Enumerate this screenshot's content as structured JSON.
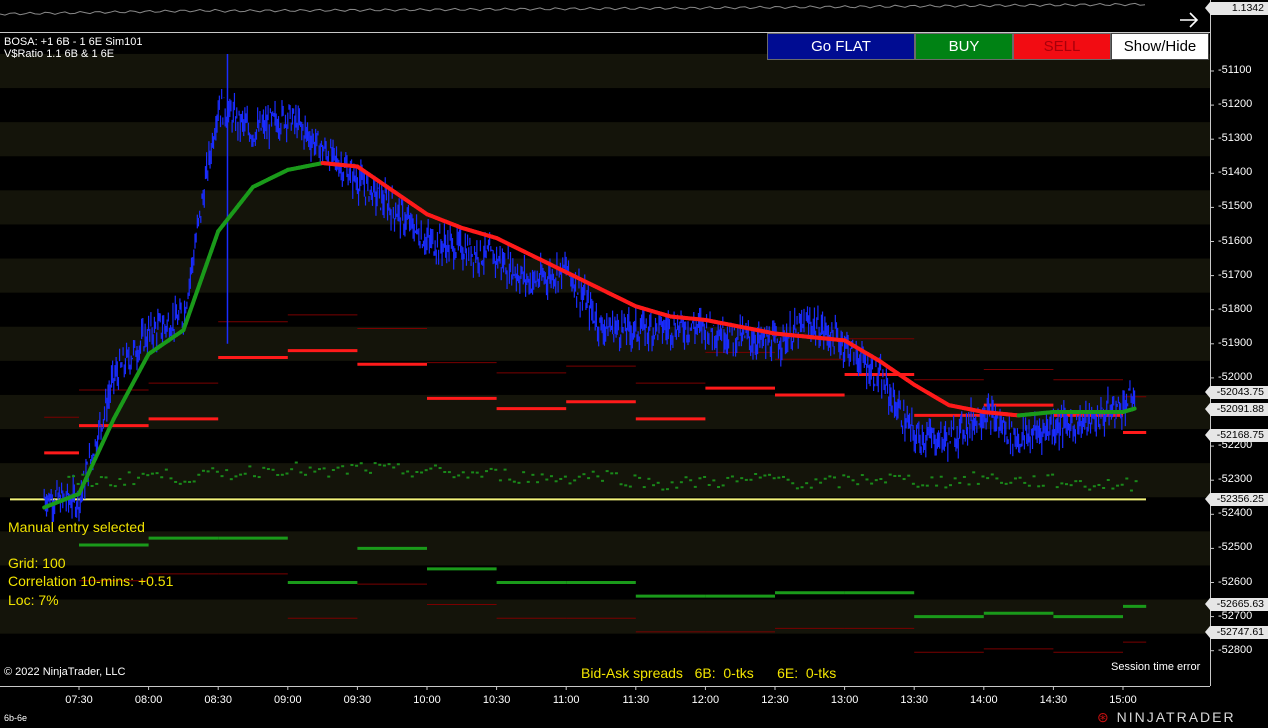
{
  "buttons": {
    "go_flat": "Go FLAT",
    "buy": "BUY",
    "sell": "SELL",
    "show_hide": "Show/Hide"
  },
  "header": {
    "line1": "BOSA: +1 6B - 1 6E  Sim101",
    "line2": "V$Ratio 1.1 6B & 1 6E"
  },
  "top_panel": {
    "price_flag": "1.1342",
    "arrow_icon": "right-arrow-icon"
  },
  "overlay": {
    "manual_entry": "Manual entry selected",
    "grid": "Grid: 100",
    "correlation": "Correlation 10-mins: +0.51",
    "loc": "Loc: 7%"
  },
  "footer": {
    "copyright": "© 2022 NinjaTrader, LLC",
    "spreads": "Bid-Ask spreads   6B:  0-tks      6E:  0-tks",
    "session": "Session time error",
    "instrument": "6b-6e",
    "logo": "NINJATRADER"
  },
  "price_axis": {
    "labels": [
      "-51100",
      "-51200",
      "-51300",
      "-51400",
      "-51500",
      "-51600",
      "-51700",
      "-51800",
      "-51900",
      "-52000",
      "-52100",
      "-52200",
      "-52300",
      "-52400",
      "-52500",
      "-52600",
      "-52700",
      "-52800"
    ],
    "flags": [
      "-52043.75",
      "-52091.88",
      "-52168.75",
      "-52356.25",
      "-52665.63",
      "-52747.61"
    ]
  },
  "time_axis": {
    "labels": [
      "07:30",
      "08:00",
      "08:30",
      "09:00",
      "09:30",
      "10:00",
      "10:30",
      "11:00",
      "11:30",
      "12:00",
      "12:30",
      "13:00",
      "13:30",
      "14:00",
      "14:30",
      "15:00"
    ]
  },
  "colors": {
    "background": "#000000",
    "band": "#14140a",
    "price_bars": "#1a2cff",
    "ma_up": "#1a9a1a",
    "ma_down": "#ff1a1a",
    "yellow_line": "#f2f27a",
    "text_yellow": "#f2e400"
  },
  "chart_data": {
    "type": "line",
    "ylim": [
      -52850,
      -51050
    ],
    "x": [
      "07:15",
      "07:30",
      "07:45",
      "08:00",
      "08:15",
      "08:30",
      "08:45",
      "09:00",
      "09:15",
      "09:30",
      "09:45",
      "10:00",
      "10:15",
      "10:30",
      "10:45",
      "11:00",
      "11:15",
      "11:30",
      "11:45",
      "12:00",
      "12:15",
      "12:30",
      "12:45",
      "13:00",
      "13:15",
      "13:30",
      "13:45",
      "14:00",
      "14:15",
      "14:30",
      "14:45",
      "15:00",
      "15:05"
    ],
    "series": [
      {
        "values": [
          -52350,
          -52360,
          -52000,
          -51870,
          -51820,
          -51200,
          -51280,
          -51230,
          -51330,
          -51420,
          -51500,
          -51600,
          -51620,
          -51650,
          -51720,
          -51680,
          -51850,
          -51860,
          -51850,
          -51850,
          -51880,
          -51900,
          -51840,
          -51900,
          -52000,
          -52170,
          -52180,
          -52100,
          -52180,
          -52140,
          -52130,
          -52080,
          -52050
        ]
      },
      {
        "values": [
          -52380,
          -52340,
          -52120,
          -51930,
          -51860,
          -51570,
          -51440,
          -51390,
          -51370,
          -51380,
          -51450,
          -51520,
          -51560,
          -51590,
          -51640,
          -51690,
          -51740,
          -51790,
          -51820,
          -51830,
          -51850,
          -51870,
          -51880,
          -51890,
          -51950,
          -52020,
          -52080,
          -52100,
          -52110,
          -52100,
          -52100,
          -52100,
          -52090
        ]
      },
      {
        "name": "",
        "values": [
          -52300,
          -52300,
          -52300,
          -52280,
          -52290,
          -52280,
          -52270,
          -52260,
          -52280,
          -52260,
          -52270,
          -52270,
          -52280,
          -52280,
          -52290,
          -52290,
          -52280,
          -52300,
          -52310,
          -52300,
          -52300,
          -52290,
          -52310,
          -52300,
          -52290,
          -52300,
          -52300,
          -52290,
          -52300,
          -52300,
          -52310,
          -52310,
          -52310
        ]
      }
    ],
    "yellow_line": -52356.25,
    "red_steps": [
      {
        "from": "07:15",
        "to": "07:30",
        "value": -52220
      },
      {
        "from": "07:30",
        "to": "08:00",
        "value": -52140
      },
      {
        "from": "08:00",
        "to": "08:30",
        "value": -52120
      },
      {
        "from": "08:30",
        "to": "09:00",
        "value": -51940
      },
      {
        "from": "09:00",
        "to": "09:30",
        "value": -51920
      },
      {
        "from": "09:30",
        "to": "10:00",
        "value": -51960
      },
      {
        "from": "10:00",
        "to": "10:30",
        "value": -52060
      },
      {
        "from": "10:30",
        "to": "11:00",
        "value": -52090
      },
      {
        "from": "11:00",
        "to": "11:30",
        "value": -52070
      },
      {
        "from": "11:30",
        "to": "12:00",
        "value": -52120
      },
      {
        "from": "12:00",
        "to": "12:30",
        "value": -52030
      },
      {
        "from": "12:30",
        "to": "13:00",
        "value": -52050
      },
      {
        "from": "13:00",
        "to": "13:30",
        "value": -51990
      },
      {
        "from": "13:30",
        "to": "14:00",
        "value": -52110
      },
      {
        "from": "14:00",
        "to": "14:30",
        "value": -52080
      },
      {
        "from": "14:30",
        "to": "15:00",
        "value": -52110
      },
      {
        "from": "15:00",
        "to": "15:10",
        "value": -52160
      }
    ],
    "green_steps": [
      {
        "from": "07:30",
        "to": "08:00",
        "value": -52490
      },
      {
        "from": "08:00",
        "to": "08:30",
        "value": -52470
      },
      {
        "from": "08:30",
        "to": "09:00",
        "value": -52470
      },
      {
        "from": "09:00",
        "to": "09:30",
        "value": -52600
      },
      {
        "from": "09:30",
        "to": "10:00",
        "value": -52500
      },
      {
        "from": "10:00",
        "to": "10:30",
        "value": -52560
      },
      {
        "from": "10:30",
        "to": "11:00",
        "value": -52600
      },
      {
        "from": "11:00",
        "to": "11:30",
        "value": -52600
      },
      {
        "from": "11:30",
        "to": "12:00",
        "value": -52640
      },
      {
        "from": "12:00",
        "to": "12:30",
        "value": -52640
      },
      {
        "from": "12:30",
        "to": "13:00",
        "value": -52630
      },
      {
        "from": "13:00",
        "to": "13:30",
        "value": -52630
      },
      {
        "from": "13:30",
        "to": "14:00",
        "value": -52700
      },
      {
        "from": "14:00",
        "to": "14:30",
        "value": -52690
      },
      {
        "from": "14:30",
        "to": "15:00",
        "value": -52700
      },
      {
        "from": "15:00",
        "to": "15:10",
        "value": -52670
      }
    ]
  }
}
